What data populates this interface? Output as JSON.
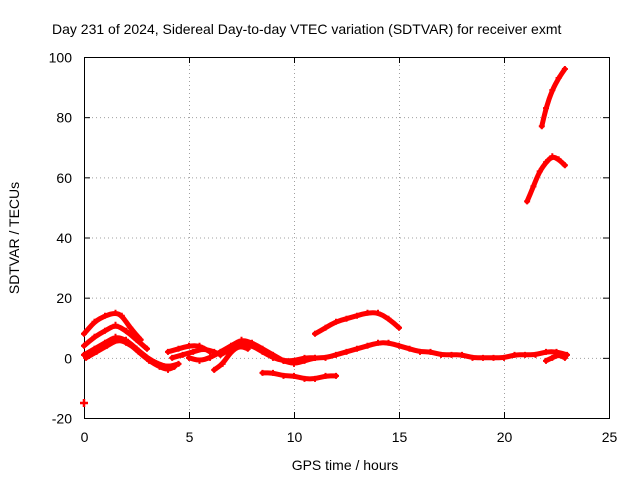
{
  "chart_data": {
    "type": "scatter",
    "title": "Day 231 of 2024, Sidereal Day-to-day VTEC variation (SDTVAR) for receiver exmt",
    "xlabel": "GPS time / hours",
    "ylabel": "SDTVAR / TECUs",
    "xlim": [
      0,
      25
    ],
    "ylim": [
      -20,
      100
    ],
    "xticks": [
      "0",
      "5",
      "10",
      "15",
      "20",
      "25"
    ],
    "yticks": [
      "-20",
      "0",
      "20",
      "40",
      "60",
      "80",
      "100"
    ],
    "grid": true,
    "marker_color": "#ff0000",
    "series": [
      {
        "name": "s1",
        "x": [
          0.0,
          0.5,
          1.0,
          1.5,
          1.8,
          2.2,
          2.7
        ],
        "y": [
          8,
          12,
          14,
          15,
          14,
          10,
          6
        ]
      },
      {
        "name": "s2",
        "x": [
          0.0,
          0.5,
          1.0,
          1.5,
          2.0,
          2.5,
          3.0
        ],
        "y": [
          4,
          7,
          9,
          11,
          9,
          6,
          3
        ]
      },
      {
        "name": "s3",
        "x": [
          0.0,
          0.5,
          1.0,
          1.5,
          2.0,
          2.5,
          3.0,
          3.5,
          4.0
        ],
        "y": [
          1,
          3,
          5,
          7,
          6,
          3,
          0,
          -2,
          -3
        ]
      },
      {
        "name": "s4",
        "x": [
          0.1,
          0.6,
          1.1,
          1.6,
          2.1,
          2.6,
          3.1,
          3.6,
          4.0,
          4.3
        ],
        "y": [
          0,
          2,
          4,
          6,
          5,
          2,
          -1,
          -3,
          -4,
          -3
        ]
      },
      {
        "name": "s5",
        "x": [
          2.0,
          2.5,
          3.0,
          3.5,
          4.0,
          4.5
        ],
        "y": [
          5,
          3,
          0,
          -2,
          -3,
          -2
        ]
      },
      {
        "name": "s6",
        "x": [
          4.0,
          4.5,
          5.0,
          5.5,
          6.0
        ],
        "y": [
          2,
          3,
          4,
          4,
          2
        ]
      },
      {
        "name": "s7",
        "x": [
          4.2,
          4.7,
          5.2,
          5.7,
          6.2,
          6.5
        ],
        "y": [
          0,
          1,
          2,
          3,
          2,
          1
        ]
      },
      {
        "name": "s8",
        "x": [
          5.0,
          5.5,
          6.0,
          6.5,
          7.0,
          7.5,
          8.0,
          8.5,
          9.0,
          9.5
        ],
        "y": [
          0,
          -1,
          0,
          2,
          4,
          6,
          5,
          3,
          1,
          -1
        ]
      },
      {
        "name": "s9",
        "x": [
          6.2,
          6.6,
          7.0,
          7.4,
          7.8
        ],
        "y": [
          -4,
          -2,
          2,
          4,
          3
        ]
      },
      {
        "name": "s10",
        "x": [
          6.5,
          7.0,
          7.5,
          8.0,
          8.5,
          9.0,
          9.5,
          10.0,
          10.5,
          11.0
        ],
        "y": [
          1,
          3,
          5,
          4,
          2,
          0,
          -1,
          -1,
          0,
          0
        ]
      },
      {
        "name": "s11",
        "x": [
          8.5,
          9.0,
          9.5,
          10.0,
          10.5,
          11.0,
          11.5,
          12.0
        ],
        "y": [
          -5,
          -5,
          -6,
          -6,
          -7,
          -7,
          -6,
          -6
        ]
      },
      {
        "name": "s12",
        "x": [
          9.5,
          10.0,
          10.5,
          11.0,
          11.5,
          12.0,
          12.5,
          13.0,
          13.5,
          14.0,
          14.5,
          15.0,
          15.5,
          16.0,
          16.5,
          17.0,
          17.5,
          18.0,
          18.5,
          19.0,
          19.5,
          20.0,
          20.5,
          21.0,
          21.5,
          22.0,
          22.5,
          23.0
        ],
        "y": [
          -1,
          -2,
          -1,
          0,
          0,
          1,
          2,
          3,
          4,
          5,
          5,
          4,
          3,
          2,
          2,
          1,
          1,
          1,
          0,
          0,
          0,
          0,
          1,
          1,
          1,
          2,
          2,
          1
        ]
      },
      {
        "name": "s13",
        "x": [
          11.0,
          11.5,
          12.0,
          12.5,
          13.0,
          13.5,
          14.0,
          14.5,
          15.0
        ],
        "y": [
          8,
          10,
          12,
          13,
          14,
          15,
          15,
          13,
          10
        ]
      },
      {
        "name": "s14",
        "x": [
          22.0,
          22.3,
          22.6,
          22.9
        ],
        "y": [
          -1,
          0,
          1,
          0
        ]
      },
      {
        "name": "s15",
        "x": [
          21.1,
          21.4,
          21.7,
          22.0,
          22.3,
          22.6,
          22.9
        ],
        "y": [
          52,
          57,
          62,
          65,
          67,
          66,
          64
        ]
      },
      {
        "name": "s16",
        "x": [
          21.8,
          22.0,
          22.3,
          22.6,
          22.9
        ],
        "y": [
          77,
          83,
          89,
          93,
          96
        ]
      },
      {
        "name": "s17",
        "x": [
          0.0
        ],
        "y": [
          -15
        ]
      }
    ]
  }
}
